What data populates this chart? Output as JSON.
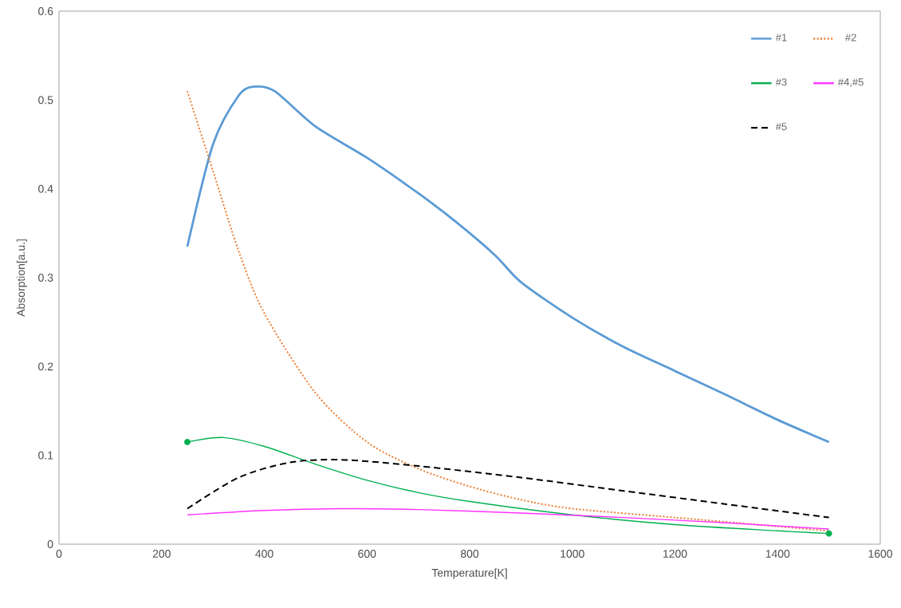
{
  "chart_data": {
    "type": "line",
    "xlabel": "Temperature[K]",
    "ylabel": "Absorption[a.u.]",
    "xlim": [
      0,
      1600
    ],
    "ylim": [
      0,
      0.6
    ],
    "xticks": [
      0,
      200,
      400,
      600,
      800,
      1000,
      1200,
      1400,
      1600
    ],
    "yticks": [
      0,
      0.1,
      0.2,
      0.3,
      0.4,
      0.5,
      0.6
    ],
    "grid": false,
    "legend": "top right",
    "series": [
      {
        "name": "#1",
        "color": "#5b9bd5",
        "line_style": "solid",
        "marker": "none",
        "x": [
          250,
          300,
          350,
          380,
          420,
          500,
          600,
          700,
          773,
          850,
          900,
          1000,
          1100,
          1200,
          1300,
          1400,
          1500
        ],
        "values": [
          0.335,
          0.45,
          0.505,
          0.515,
          0.51,
          0.47,
          0.435,
          0.395,
          0.363,
          0.325,
          0.295,
          0.255,
          0.222,
          0.195,
          0.168,
          0.14,
          0.115
        ]
      },
      {
        "name": "#2",
        "color": "#ed7d31",
        "line_style": "dotted",
        "marker": "none",
        "x": [
          250,
          300,
          350,
          400,
          500,
          600,
          700,
          800,
          900,
          1000,
          1200,
          1400,
          1500
        ],
        "values": [
          0.51,
          0.42,
          0.33,
          0.26,
          0.17,
          0.115,
          0.085,
          0.065,
          0.05,
          0.04,
          0.03,
          0.02,
          0.015
        ]
      },
      {
        "name": "#3",
        "color": "#00b050",
        "line_style": "solid",
        "marker": "none",
        "x": [
          250,
          320,
          400,
          500,
          600,
          700,
          800,
          1000,
          1200,
          1400,
          1500
        ],
        "values": [
          0.115,
          0.12,
          0.11,
          0.09,
          0.072,
          0.058,
          0.048,
          0.033,
          0.022,
          0.015,
          0.012
        ]
      },
      {
        "name": "#4,#5",
        "color": "#ff33ff",
        "line_style": "solid",
        "marker": "none",
        "x": [
          250,
          400,
          550,
          700,
          900,
          1100,
          1300,
          1500
        ],
        "values": [
          0.033,
          0.038,
          0.04,
          0.039,
          0.035,
          0.03,
          0.024,
          0.017
        ]
      },
      {
        "name": "#5",
        "color": "#000000",
        "line_style": "dashed",
        "marker": "none",
        "x": [
          250,
          350,
          450,
          550,
          700,
          900,
          1100,
          1300,
          1500
        ],
        "values": [
          0.04,
          0.075,
          0.092,
          0.095,
          0.088,
          0.075,
          0.06,
          0.045,
          0.03
        ]
      },
      {
        "type": "scatter",
        "color": "#00b050",
        "marker": "circle",
        "x": [
          250,
          1500
        ],
        "values": [
          0.115,
          0.012
        ]
      }
    ]
  }
}
